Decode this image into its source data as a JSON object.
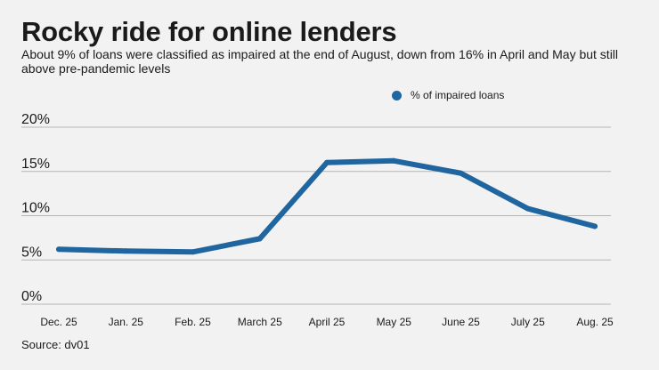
{
  "header": {
    "title": "Rocky ride for online lenders",
    "subtitle": "About 9% of loans were classified as impaired at the end of August, down from 16% in April and May but still above pre-pandemic levels"
  },
  "footer": {
    "source": "Source: dv01"
  },
  "colors": {
    "line": "#1f66a0",
    "grid": "#b5b5b5",
    "background": "#f2f2f2"
  },
  "chart_data": {
    "type": "line",
    "categories": [
      "Dec. 25",
      "Jan. 25",
      "Feb. 25",
      "March 25",
      "April 25",
      "May 25",
      "June 25",
      "July 25",
      "Aug. 25"
    ],
    "series": [
      {
        "name": "% of impaired loans",
        "values": [
          6.2,
          6.0,
          5.9,
          7.4,
          16.0,
          16.2,
          14.8,
          10.8,
          8.8
        ]
      }
    ],
    "ylim": [
      0,
      20
    ],
    "yticks": [
      0,
      5,
      10,
      15,
      20
    ],
    "ytick_labels": [
      "0%",
      "5%",
      "10%",
      "15%",
      "20%"
    ],
    "grid": true,
    "legend": "top-right"
  }
}
